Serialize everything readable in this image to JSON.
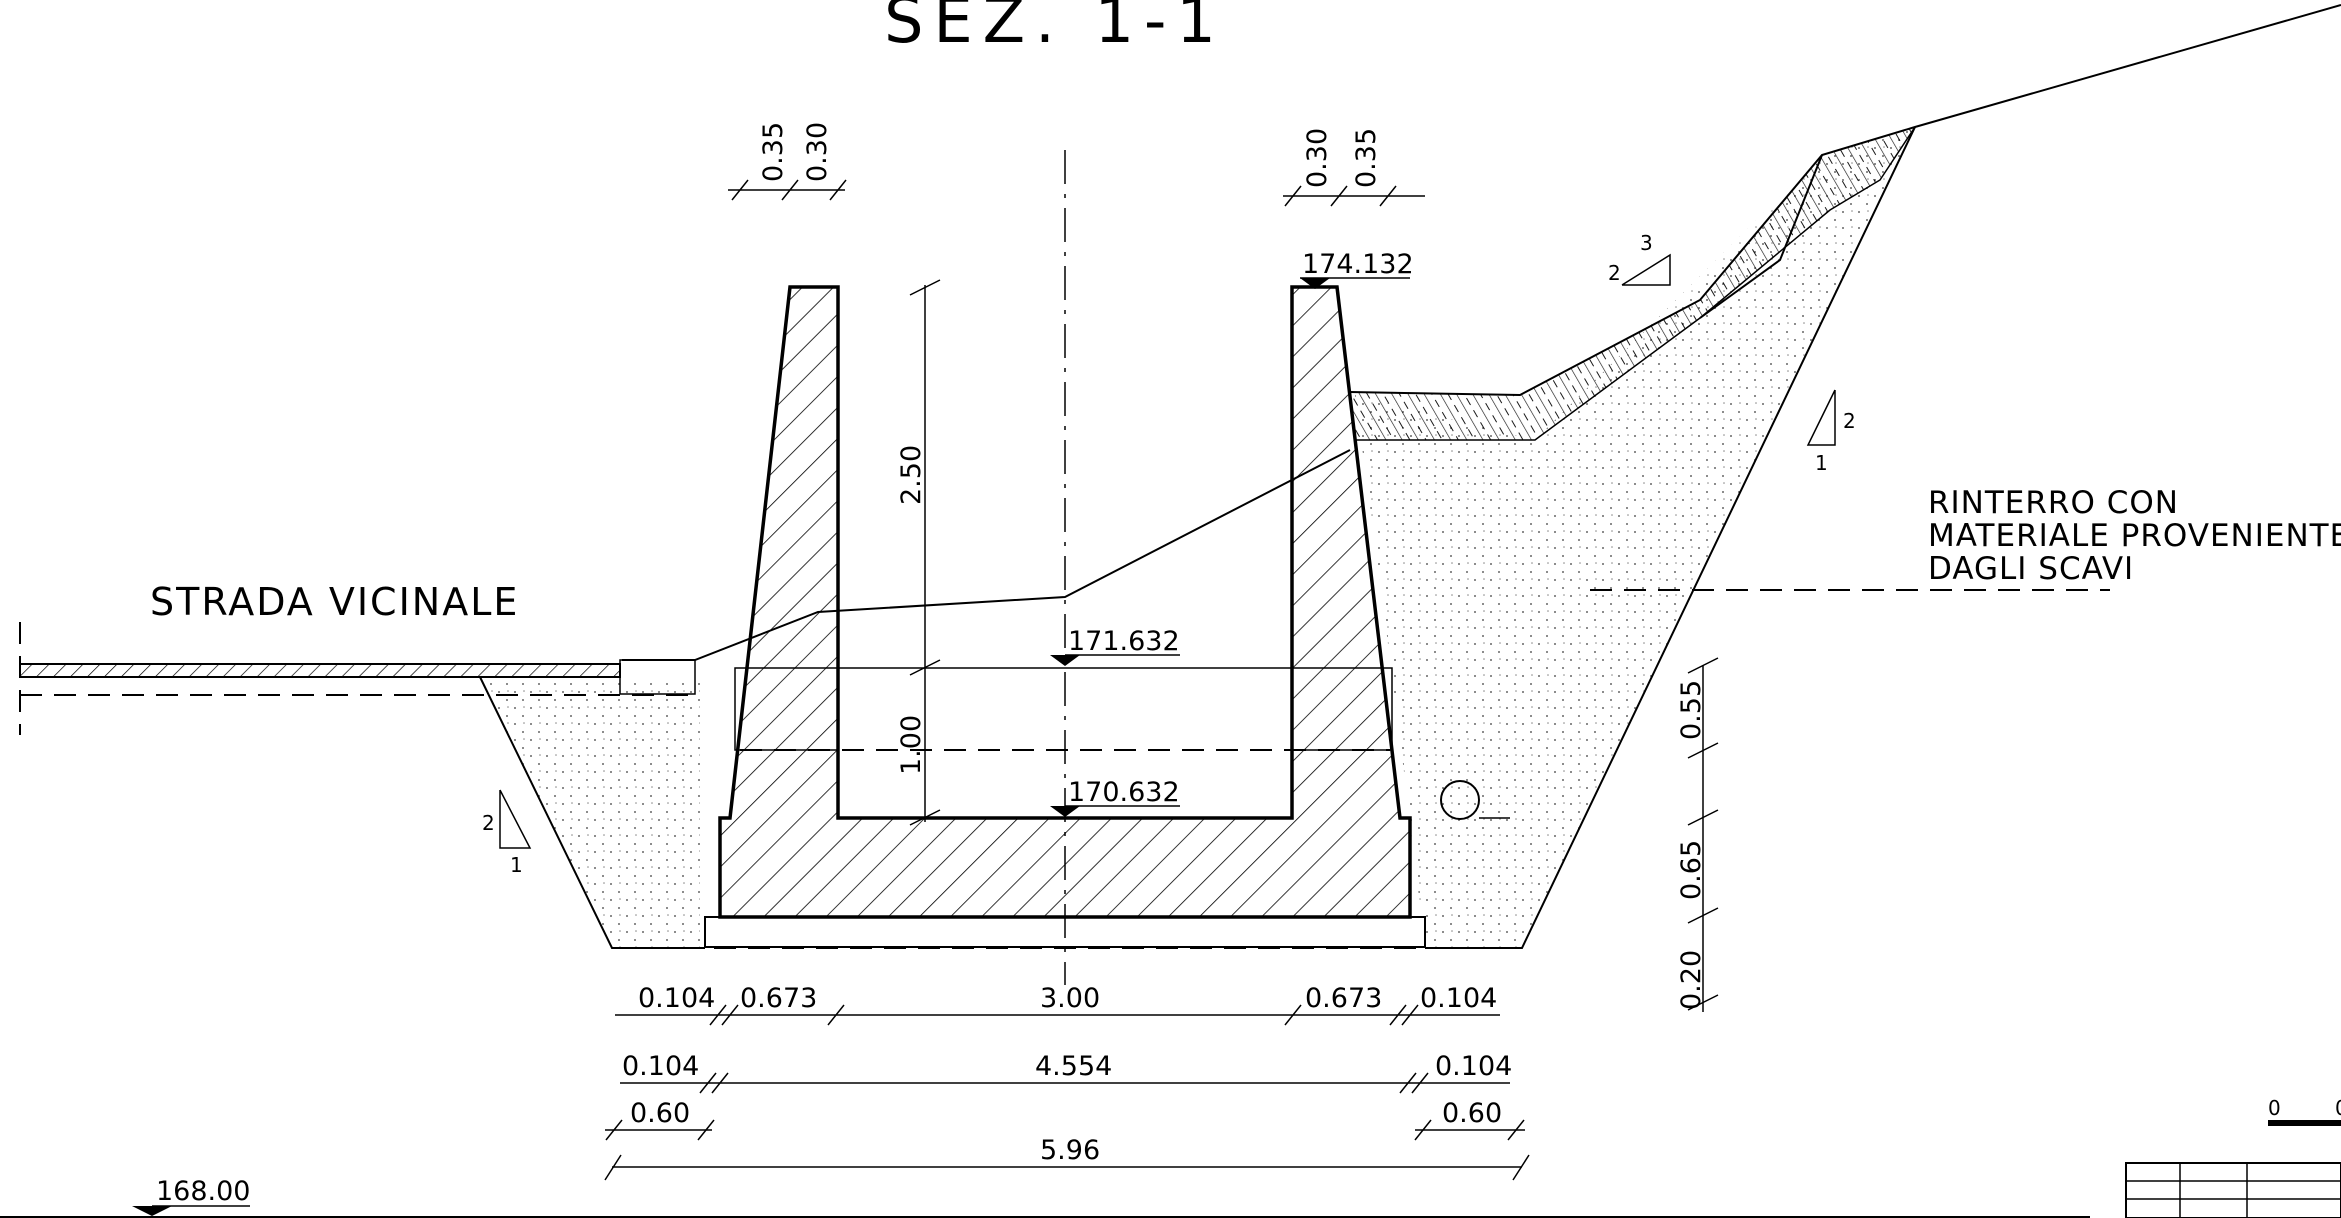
{
  "title": "SEZ. 1-1",
  "road_label": "STRADA VICINALE",
  "fill_note": [
    "RINTERRO CON",
    "MATERIALE PROVENIENTE",
    "DAGLI SCAVI"
  ],
  "elevations": {
    "top_wall": "174.132",
    "water": "171.632",
    "channel_bottom": "170.632",
    "datum": "168.00"
  },
  "dimensions": {
    "wall_top_left": [
      "0.35",
      "0.30"
    ],
    "wall_top_right": [
      "0.30",
      "0.35"
    ],
    "wall_height": "2.50",
    "water_depth": "1.00",
    "bottom_row": [
      "0.104",
      "0.673",
      "3.00",
      "0.673",
      "0.104"
    ],
    "middle_row": [
      "0.104",
      "4.554",
      "0.104"
    ],
    "offsets_row": [
      "0.60",
      "0.60"
    ],
    "total_width": "5.96",
    "right_vertical": [
      "0.55",
      "0.65",
      "0.20"
    ]
  },
  "slopes": {
    "left": [
      "2",
      "1"
    ],
    "right": [
      "2",
      "1"
    ],
    "upper": [
      "2",
      "3"
    ]
  },
  "scale_bar": [
    "0",
    "0"
  ]
}
